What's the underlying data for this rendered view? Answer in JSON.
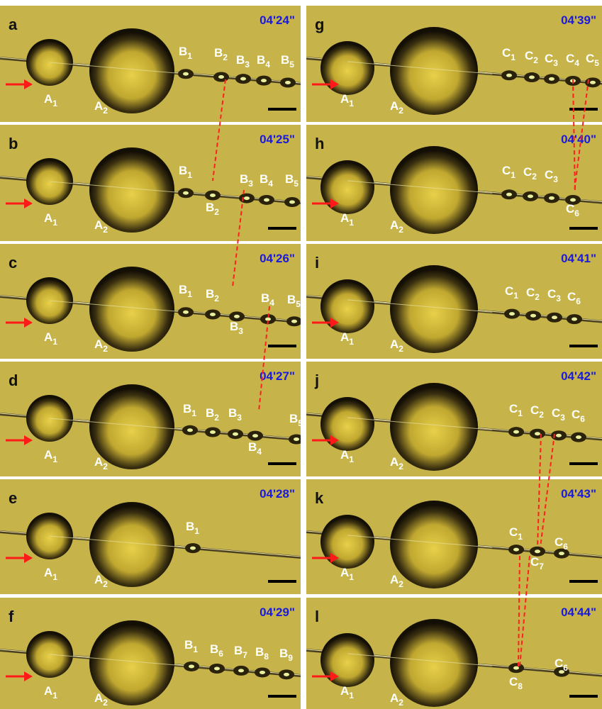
{
  "panels": [
    {
      "letter": "a",
      "time": "04'24\"",
      "labels": [
        {
          "base": "A",
          "sub": "1"
        },
        {
          "base": "A",
          "sub": "2"
        },
        {
          "base": "B",
          "sub": "1"
        },
        {
          "base": "B",
          "sub": "2"
        },
        {
          "base": "B",
          "sub": "3"
        },
        {
          "base": "B",
          "sub": "4"
        },
        {
          "base": "B",
          "sub": "5"
        }
      ]
    },
    {
      "letter": "b",
      "time": "04'25\"",
      "labels": [
        {
          "base": "A",
          "sub": "1"
        },
        {
          "base": "A",
          "sub": "2"
        },
        {
          "base": "B",
          "sub": "1"
        },
        {
          "base": "B",
          "sub": "2"
        },
        {
          "base": "B",
          "sub": "3"
        },
        {
          "base": "B",
          "sub": "4"
        },
        {
          "base": "B",
          "sub": "5"
        }
      ]
    },
    {
      "letter": "c",
      "time": "04'26\"",
      "labels": [
        {
          "base": "A",
          "sub": "1"
        },
        {
          "base": "A",
          "sub": "2"
        },
        {
          "base": "B",
          "sub": "1"
        },
        {
          "base": "B",
          "sub": "2"
        },
        {
          "base": "B",
          "sub": "3"
        },
        {
          "base": "B",
          "sub": "4"
        },
        {
          "base": "B",
          "sub": "5"
        }
      ]
    },
    {
      "letter": "d",
      "time": "04'27\"",
      "labels": [
        {
          "base": "A",
          "sub": "1"
        },
        {
          "base": "A",
          "sub": "2"
        },
        {
          "base": "B",
          "sub": "1"
        },
        {
          "base": "B",
          "sub": "2"
        },
        {
          "base": "B",
          "sub": "3"
        },
        {
          "base": "B",
          "sub": "4"
        },
        {
          "base": "B",
          "sub": "5"
        }
      ]
    },
    {
      "letter": "e",
      "time": "04'28\"",
      "labels": [
        {
          "base": "A",
          "sub": "1"
        },
        {
          "base": "A",
          "sub": "2"
        },
        {
          "base": "B",
          "sub": "1"
        }
      ]
    },
    {
      "letter": "f",
      "time": "04'29\"",
      "labels": [
        {
          "base": "A",
          "sub": "1"
        },
        {
          "base": "A",
          "sub": "2"
        },
        {
          "base": "B",
          "sub": "1"
        },
        {
          "base": "B",
          "sub": "6"
        },
        {
          "base": "B",
          "sub": "7"
        },
        {
          "base": "B",
          "sub": "8"
        },
        {
          "base": "B",
          "sub": "9"
        }
      ]
    },
    {
      "letter": "g",
      "time": "04'39\"",
      "labels": [
        {
          "base": "A",
          "sub": "1"
        },
        {
          "base": "A",
          "sub": "2"
        },
        {
          "base": "C",
          "sub": "1"
        },
        {
          "base": "C",
          "sub": "2"
        },
        {
          "base": "C",
          "sub": "3"
        },
        {
          "base": "C",
          "sub": "4"
        },
        {
          "base": "C",
          "sub": "5"
        }
      ]
    },
    {
      "letter": "h",
      "time": "04'40\"",
      "labels": [
        {
          "base": "A",
          "sub": "1"
        },
        {
          "base": "A",
          "sub": "2"
        },
        {
          "base": "C",
          "sub": "1"
        },
        {
          "base": "C",
          "sub": "2"
        },
        {
          "base": "C",
          "sub": "3"
        },
        {
          "base": "C",
          "sub": "6"
        }
      ]
    },
    {
      "letter": "i",
      "time": "04'41\"",
      "labels": [
        {
          "base": "A",
          "sub": "1"
        },
        {
          "base": "A",
          "sub": "2"
        },
        {
          "base": "C",
          "sub": "1"
        },
        {
          "base": "C",
          "sub": "2"
        },
        {
          "base": "C",
          "sub": "3"
        },
        {
          "base": "C",
          "sub": "6"
        }
      ]
    },
    {
      "letter": "j",
      "time": "04'42\"",
      "labels": [
        {
          "base": "A",
          "sub": "1"
        },
        {
          "base": "A",
          "sub": "2"
        },
        {
          "base": "C",
          "sub": "1"
        },
        {
          "base": "C",
          "sub": "2"
        },
        {
          "base": "C",
          "sub": "3"
        },
        {
          "base": "C",
          "sub": "6"
        }
      ]
    },
    {
      "letter": "k",
      "time": "04'43\"",
      "labels": [
        {
          "base": "A",
          "sub": "1"
        },
        {
          "base": "A",
          "sub": "2"
        },
        {
          "base": "C",
          "sub": "1"
        },
        {
          "base": "C",
          "sub": "7"
        },
        {
          "base": "C",
          "sub": "6"
        }
      ]
    },
    {
      "letter": "l",
      "time": "04'44\"",
      "labels": [
        {
          "base": "A",
          "sub": "1"
        },
        {
          "base": "A",
          "sub": "2"
        },
        {
          "base": "C",
          "sub": "8"
        },
        {
          "base": "C",
          "sub": "6"
        }
      ]
    }
  ]
}
